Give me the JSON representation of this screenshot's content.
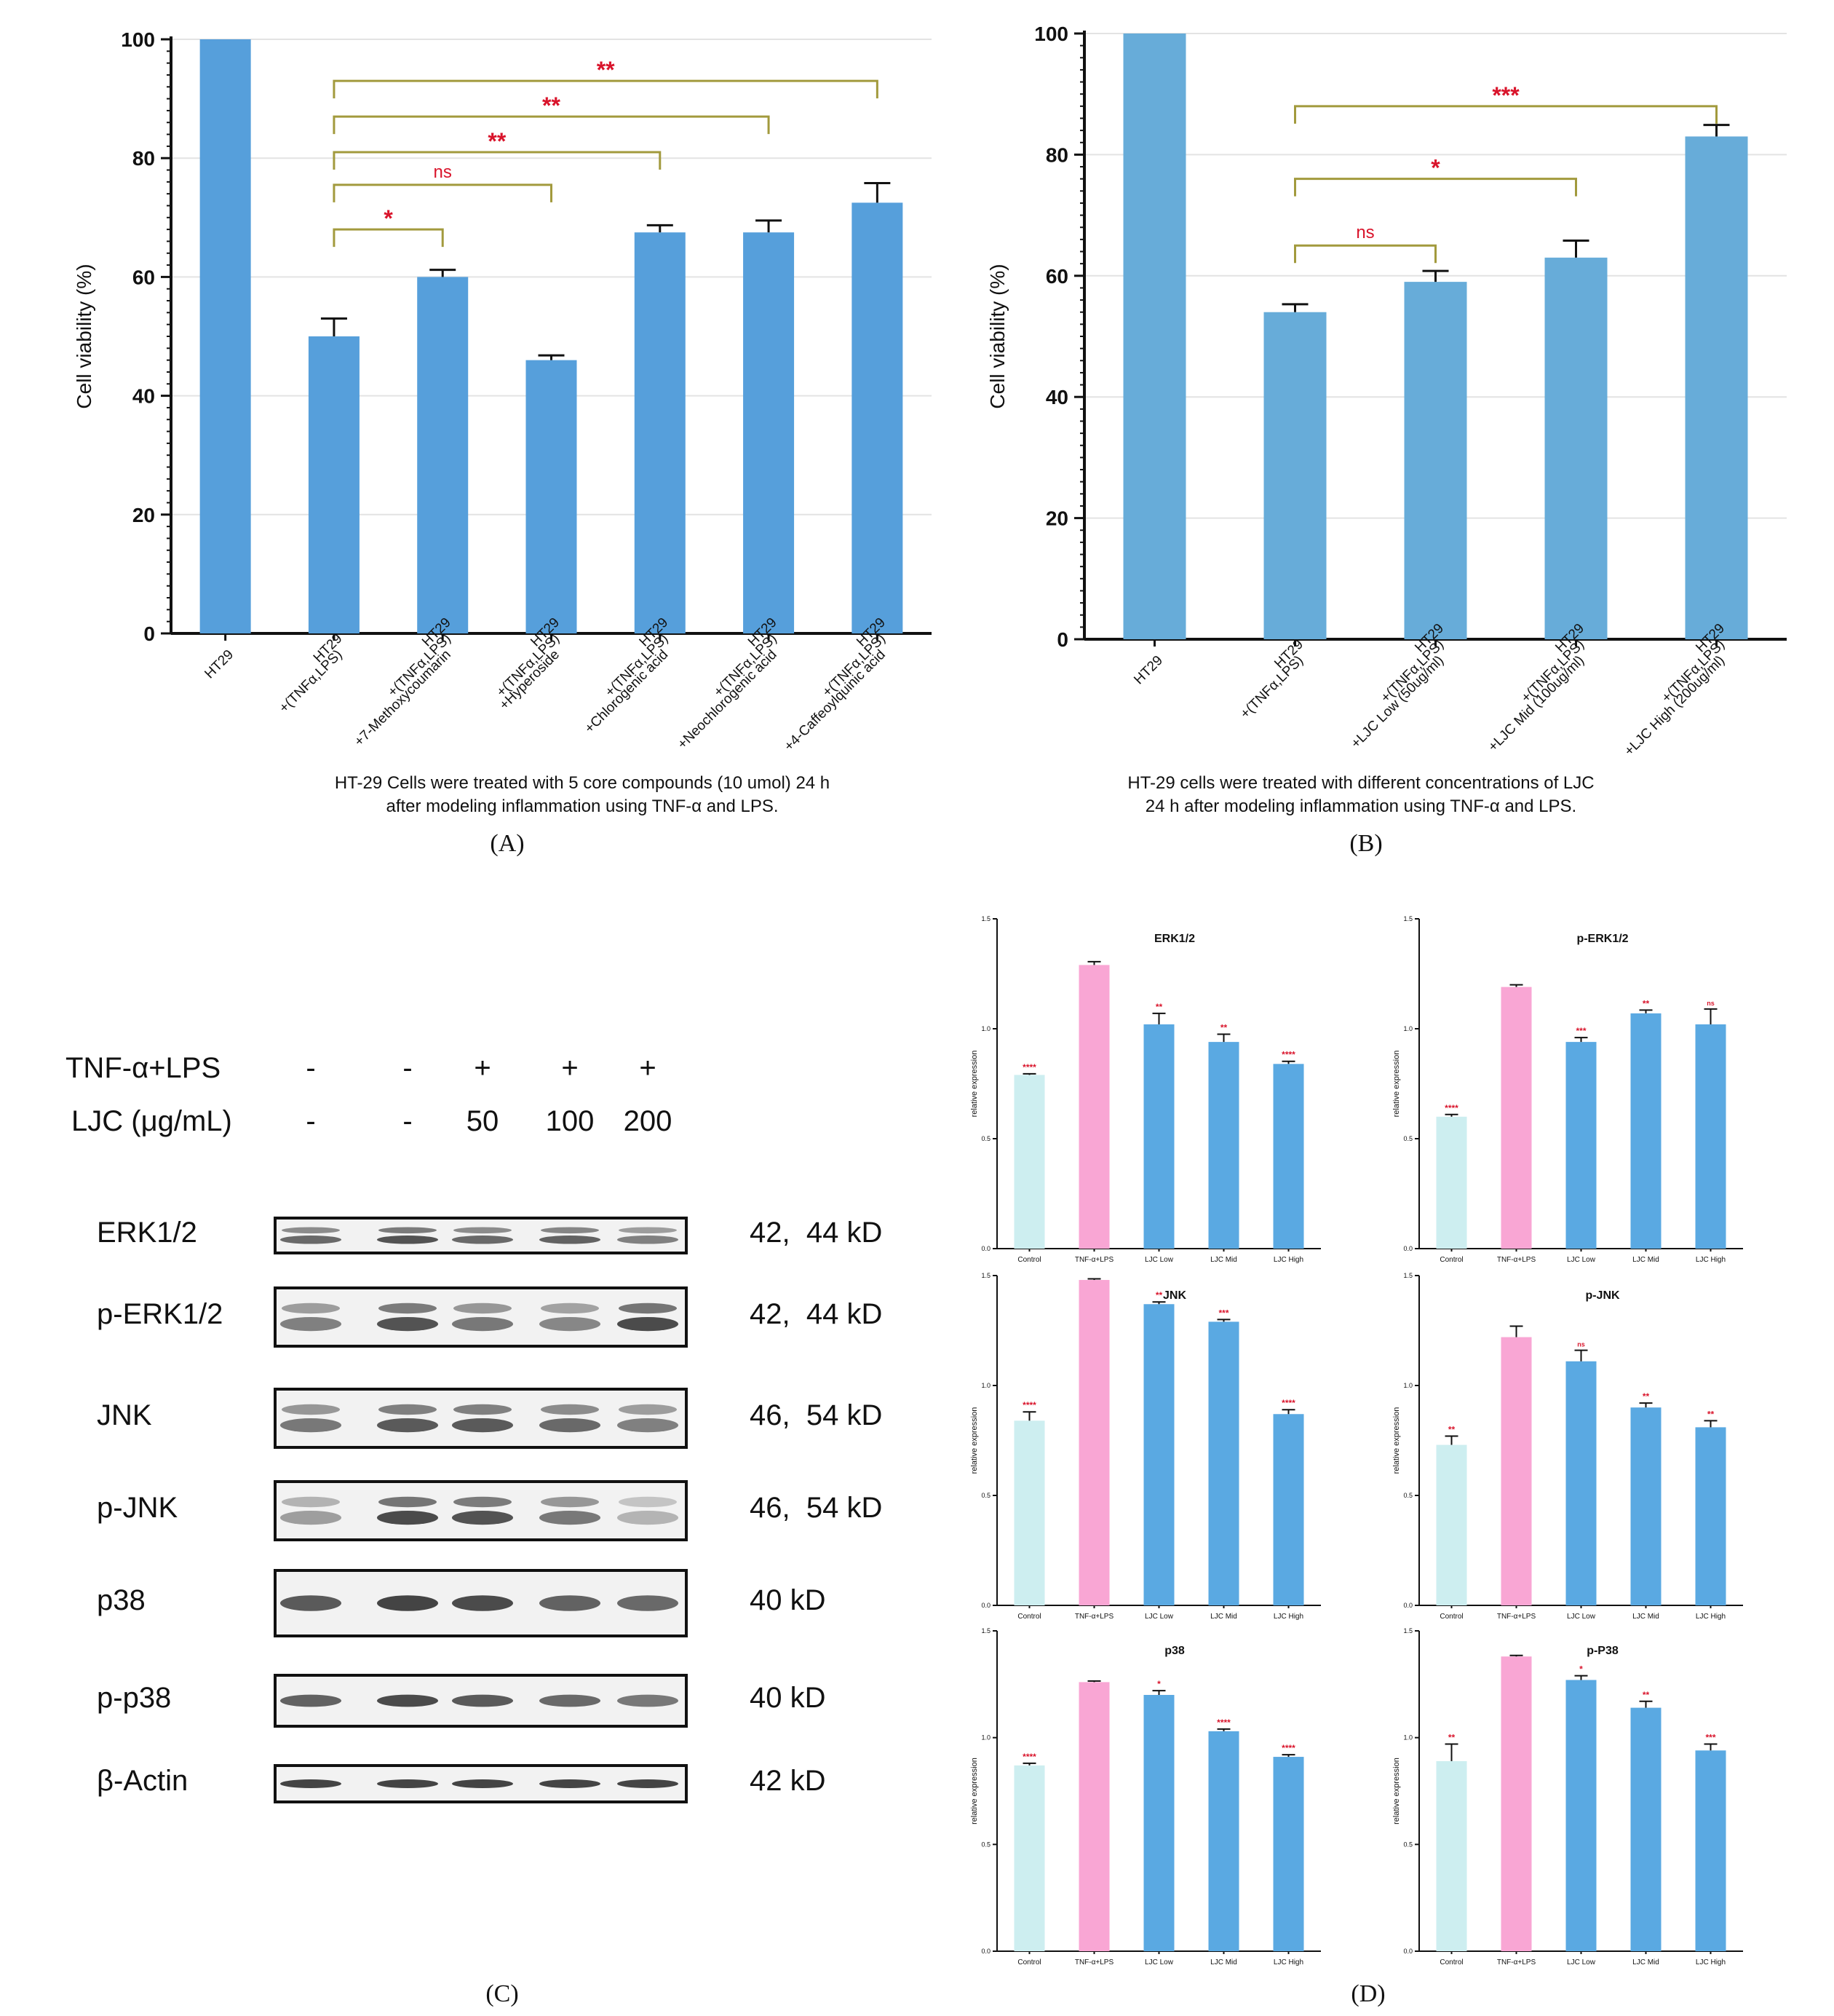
{
  "chart_data": [
    {
      "id": "A",
      "type": "bar",
      "panel_label": "(A)",
      "title": "",
      "caption_lines": [
        "HT-29 Cells were treated with 5 core compounds (10 umol) 24 h",
        "after modeling inflammation using TNF-α and LPS."
      ],
      "xlabel": "",
      "ylabel": "Cell viability (%)",
      "ylim": [
        0,
        100
      ],
      "yticks": [
        0,
        20,
        40,
        60,
        80,
        100
      ],
      "grid": true,
      "bar_color": "#569fdb",
      "categories": [
        [
          "HT29"
        ],
        [
          "HT29",
          "+(TNFα,LPS)"
        ],
        [
          "HT29",
          "+(TNFα,LPS)",
          "+7-Methoxycoumarin"
        ],
        [
          "HT29",
          "+(TNFα,LPS)",
          "+Hyperoside"
        ],
        [
          "HT29",
          "+(TNFα,LPS)",
          "+Chlorogenic acid"
        ],
        [
          "HT29",
          "+(TNFα,LPS)",
          "+Neochlorogenic acid"
        ],
        [
          "HT29",
          "+(TNFα,LPS)",
          "+4-Caffeoylquinic acid"
        ]
      ],
      "values": [
        100,
        50,
        60,
        46,
        67.5,
        67.5,
        72.5
      ],
      "errors": [
        0,
        3,
        1.2,
        0.8,
        1.2,
        2,
        3.3
      ],
      "annotations": [
        {
          "from": 1,
          "to": 2,
          "label": "*",
          "y": 68
        },
        {
          "from": 1,
          "to": 3,
          "label": "ns",
          "y": 75.5
        },
        {
          "from": 1,
          "to": 4,
          "label": "**",
          "y": 81
        },
        {
          "from": 1,
          "to": 5,
          "label": "**",
          "y": 87
        },
        {
          "from": 1,
          "to": 6,
          "label": "**",
          "y": 93
        }
      ]
    },
    {
      "id": "B",
      "type": "bar",
      "panel_label": "(B)",
      "title": "",
      "caption_lines": [
        "HT-29 cells were treated with different concentrations of LJC",
        "24 h after modeling inflammation using TNF-α and LPS."
      ],
      "xlabel": "",
      "ylabel": "Cell viability (%)",
      "ylim": [
        0,
        100
      ],
      "yticks": [
        0,
        20,
        40,
        60,
        80,
        100
      ],
      "grid": true,
      "bar_color": "#67acd9",
      "categories": [
        [
          "HT29"
        ],
        [
          "HT29",
          "+(TNFα,LPS)"
        ],
        [
          "HT29",
          "+(TNFα,LPS)",
          "+LJC Low (50ug/ml)"
        ],
        [
          "HT29",
          "+(TNFα,LPS)",
          "+LJC Mid (100ug/ml)"
        ],
        [
          "HT29",
          "+(TNFα,LPS)",
          "+LJC High (200ug/ml)"
        ]
      ],
      "values": [
        100,
        54,
        59,
        63,
        83
      ],
      "errors": [
        0,
        1.3,
        1.8,
        2.8,
        1.9
      ],
      "annotations": [
        {
          "from": 1,
          "to": 2,
          "label": "ns",
          "y": 65
        },
        {
          "from": 1,
          "to": 3,
          "label": "*",
          "y": 76
        },
        {
          "from": 1,
          "to": 4,
          "label": "***",
          "y": 88
        }
      ]
    },
    {
      "id": "D1",
      "type": "bar",
      "title": "ERK1/2",
      "ylabel": "relative expression",
      "ylim": [
        0,
        1.5
      ],
      "yticks": [
        "0.0",
        "0.5",
        "1.0",
        "1.5"
      ],
      "categories": [
        "Control",
        "TNF-α+LPS",
        "LJC Low",
        "LJC Mid",
        "LJC High"
      ],
      "values": [
        0.79,
        1.29,
        1.02,
        0.94,
        0.84
      ],
      "errors": [
        0.005,
        0.015,
        0.05,
        0.035,
        0.012
      ],
      "significance": [
        "****",
        "",
        "**",
        "**",
        "****"
      ],
      "colors": [
        "#cdeef0",
        "#f9a6d4",
        "#5aa9e2",
        "#5aa9e2",
        "#5aa9e2"
      ]
    },
    {
      "id": "D2",
      "type": "bar",
      "title": "p-ERK1/2",
      "ylabel": "relative expression",
      "ylim": [
        0,
        1.5
      ],
      "yticks": [
        "0.0",
        "0.5",
        "1.0",
        "1.5"
      ],
      "categories": [
        "Control",
        "TNF-α+LPS",
        "LJC Low",
        "LJC Mid",
        "LJC High"
      ],
      "values": [
        0.6,
        1.19,
        0.94,
        1.07,
        1.02
      ],
      "errors": [
        0.01,
        0.01,
        0.02,
        0.015,
        0.07
      ],
      "significance": [
        "****",
        "",
        "***",
        "**",
        "ns"
      ],
      "colors": [
        "#cdeef0",
        "#f9a6d4",
        "#5aa9e2",
        "#5aa9e2",
        "#5aa9e2"
      ]
    },
    {
      "id": "D3",
      "type": "bar",
      "title": "JNK",
      "ylabel": "relative expression",
      "ylim": [
        0,
        1.5
      ],
      "yticks": [
        "0.0",
        "0.5",
        "1.0",
        "1.5"
      ],
      "categories": [
        "Control",
        "TNF-α+LPS",
        "LJC Low",
        "LJC Mid",
        "LJC High"
      ],
      "values": [
        0.84,
        1.48,
        1.37,
        1.29,
        0.87
      ],
      "errors": [
        0.04,
        0.005,
        0.01,
        0.01,
        0.02
      ],
      "significance": [
        "****",
        "",
        "**",
        "***",
        "****"
      ],
      "colors": [
        "#cdeef0",
        "#f9a6d4",
        "#5aa9e2",
        "#5aa9e2",
        "#5aa9e2"
      ]
    },
    {
      "id": "D4",
      "type": "bar",
      "title": "p-JNK",
      "ylabel": "relative expression",
      "ylim": [
        0,
        1.5
      ],
      "yticks": [
        "0.0",
        "0.5",
        "1.0",
        "1.5"
      ],
      "categories": [
        "Control",
        "TNF-α+LPS",
        "LJC Low",
        "LJC Mid",
        "LJC High"
      ],
      "values": [
        0.73,
        1.22,
        1.11,
        0.9,
        0.81
      ],
      "errors": [
        0.04,
        0.05,
        0.05,
        0.02,
        0.03
      ],
      "significance": [
        "**",
        "",
        "ns",
        "**",
        "**"
      ],
      "colors": [
        "#cdeef0",
        "#f9a6d4",
        "#5aa9e2",
        "#5aa9e2",
        "#5aa9e2"
      ]
    },
    {
      "id": "D5",
      "type": "bar",
      "title": "p38",
      "ylabel": "relative expression",
      "ylim": [
        0,
        1.5
      ],
      "yticks": [
        "0.0",
        "0.5",
        "1.0",
        "1.5"
      ],
      "categories": [
        "Control",
        "TNF-α+LPS",
        "LJC Low",
        "LJC Mid",
        "LJC High"
      ],
      "values": [
        0.87,
        1.26,
        1.2,
        1.03,
        0.91
      ],
      "errors": [
        0.01,
        0.005,
        0.02,
        0.01,
        0.01
      ],
      "significance": [
        "****",
        "",
        "*",
        "****",
        "****"
      ],
      "colors": [
        "#cdeef0",
        "#f9a6d4",
        "#5aa9e2",
        "#5aa9e2",
        "#5aa9e2"
      ]
    },
    {
      "id": "D6",
      "type": "bar",
      "title": "p-P38",
      "ylabel": "relative expression",
      "ylim": [
        0,
        1.5
      ],
      "yticks": [
        "0.0",
        "0.5",
        "1.0",
        "1.5"
      ],
      "categories": [
        "Control",
        "TNF-α+LPS",
        "LJC Low",
        "LJC Mid",
        "LJC High"
      ],
      "values": [
        0.89,
        1.38,
        1.27,
        1.14,
        0.94
      ],
      "errors": [
        0.08,
        0.005,
        0.02,
        0.03,
        0.03
      ],
      "significance": [
        "**",
        "",
        "*",
        "**",
        "***"
      ],
      "colors": [
        "#cdeef0",
        "#f9a6d4",
        "#5aa9e2",
        "#5aa9e2",
        "#5aa9e2"
      ]
    }
  ],
  "western_blot": {
    "panel_label": "(C)",
    "treatment_labels": [
      "TNF-α+LPS",
      "LJC (μg/mL)"
    ],
    "treatment_values": [
      [
        "-",
        "-",
        "+",
        "+",
        "+"
      ],
      [
        "-",
        "-",
        "50",
        "100",
        "200"
      ]
    ],
    "proteins": [
      {
        "name": "ERK1/2",
        "mw": "42,  44 kD",
        "bands": 2,
        "intensity": [
          0.7,
          0.85,
          0.7,
          0.75,
          0.55
        ]
      },
      {
        "name": "p-ERK1/2",
        "mw": "42,  44 kD",
        "bands": 2,
        "intensity": [
          0.55,
          0.85,
          0.6,
          0.5,
          0.9
        ]
      },
      {
        "name": "JNK",
        "mw": "46,  54 kD",
        "bands": 2,
        "intensity": [
          0.6,
          0.8,
          0.8,
          0.7,
          0.55
        ]
      },
      {
        "name": "p-JNK",
        "mw": "46,  54 kD",
        "bands": 2,
        "intensity": [
          0.35,
          0.9,
          0.85,
          0.6,
          0.2
        ]
      },
      {
        "name": "p38",
        "mw": "40 kD",
        "bands": 1,
        "intensity": [
          0.8,
          0.95,
          0.9,
          0.75,
          0.7
        ]
      },
      {
        "name": "p-p38",
        "mw": "40 kD",
        "bands": 1,
        "intensity": [
          0.75,
          0.9,
          0.8,
          0.7,
          0.6
        ]
      },
      {
        "name": "β-Actin",
        "mw": "42 kD",
        "bands": 1,
        "intensity": [
          0.95,
          0.95,
          0.95,
          0.95,
          0.95
        ]
      }
    ]
  },
  "panel_d_label": "(D)",
  "colors": {
    "sig_red": "#d9142b",
    "bracket": "#a29a3d",
    "axis": "#111111",
    "grid": "#e3e3e3"
  }
}
